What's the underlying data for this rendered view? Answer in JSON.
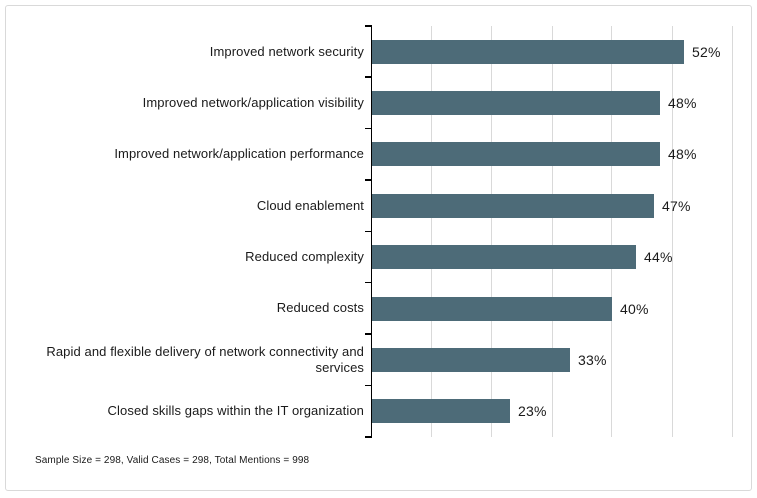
{
  "chart_data": {
    "type": "bar",
    "orientation": "horizontal",
    "title": "",
    "xlabel": "",
    "ylabel": "",
    "categories": [
      "Improved network security",
      "Improved network/application visibility",
      "Improved network/application performance",
      "Cloud enablement",
      "Reduced complexity",
      "Reduced costs",
      "Rapid and flexible delivery of network connectivity and services",
      "Closed skills gaps within the IT organization"
    ],
    "values": [
      52,
      48,
      48,
      47,
      44,
      40,
      33,
      23
    ],
    "value_labels": [
      "52%",
      "48%",
      "48%",
      "47%",
      "44%",
      "40%",
      "33%",
      "23%"
    ],
    "xlim": [
      0,
      60
    ],
    "gridline_interval": 10,
    "grid": true,
    "legend": false,
    "axis_tick_labels_visible": false,
    "colors": {
      "bar": "#4D6B78",
      "gridline": "#d9d9d9",
      "axis": "#000000",
      "text": "#1a1a1a",
      "frame_border": "#d9d9d9",
      "background": "#ffffff"
    },
    "footnote": "Sample Size = 298, Valid Cases = 298, Total Mentions = 998"
  }
}
